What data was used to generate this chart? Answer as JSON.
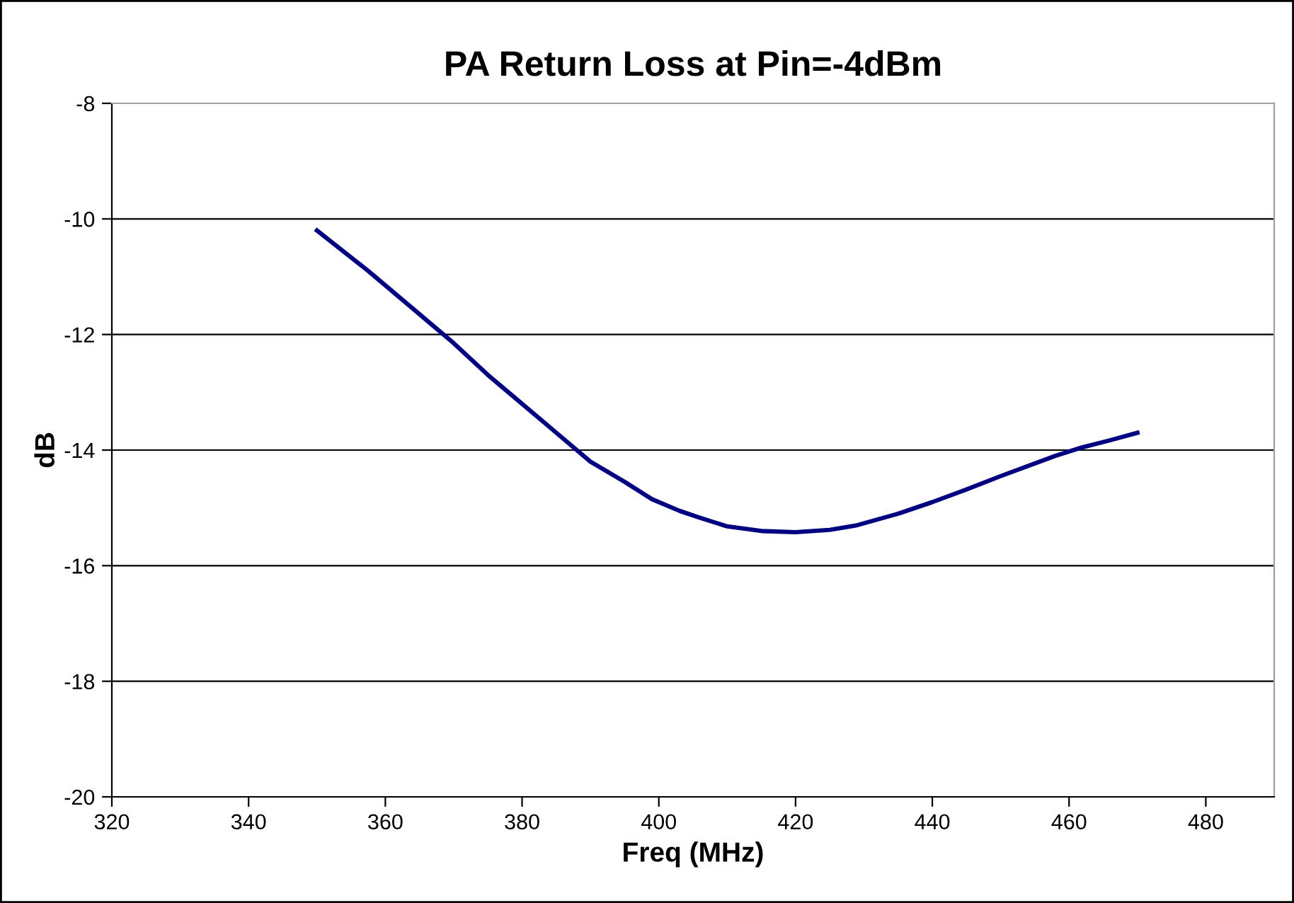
{
  "chart_data": {
    "type": "line",
    "title": "PA Return Loss at Pin=-4dBm",
    "xlabel": "Freq (MHz)",
    "ylabel": "dB",
    "series": [
      {
        "color": "#000080",
        "x": [
          350,
          357.5,
          364,
          370,
          375,
          380,
          385,
          390,
          395,
          399,
          403,
          406,
          410,
          415,
          420,
          425,
          429,
          435,
          440,
          445,
          450,
          455,
          458,
          462,
          466,
          470
        ],
        "values": [
          -10.2,
          -10.9,
          -11.55,
          -12.15,
          -12.7,
          -13.2,
          -13.7,
          -14.2,
          -14.55,
          -14.85,
          -15.05,
          -15.17,
          -15.32,
          -15.4,
          -15.42,
          -15.38,
          -15.3,
          -15.1,
          -14.9,
          -14.68,
          -14.45,
          -14.23,
          -14.1,
          -13.95,
          -13.83,
          -13.7
        ]
      }
    ],
    "xlim": [
      320,
      490
    ],
    "xticks": [
      320,
      340,
      360,
      380,
      400,
      420,
      440,
      460,
      480
    ],
    "ylim": [
      -20,
      -8
    ],
    "yticks": [
      -20,
      -18,
      -16,
      -14,
      -12,
      -10,
      -8
    ],
    "grid": "y",
    "legend": false,
    "marker": "none",
    "line_style": "solid"
  }
}
